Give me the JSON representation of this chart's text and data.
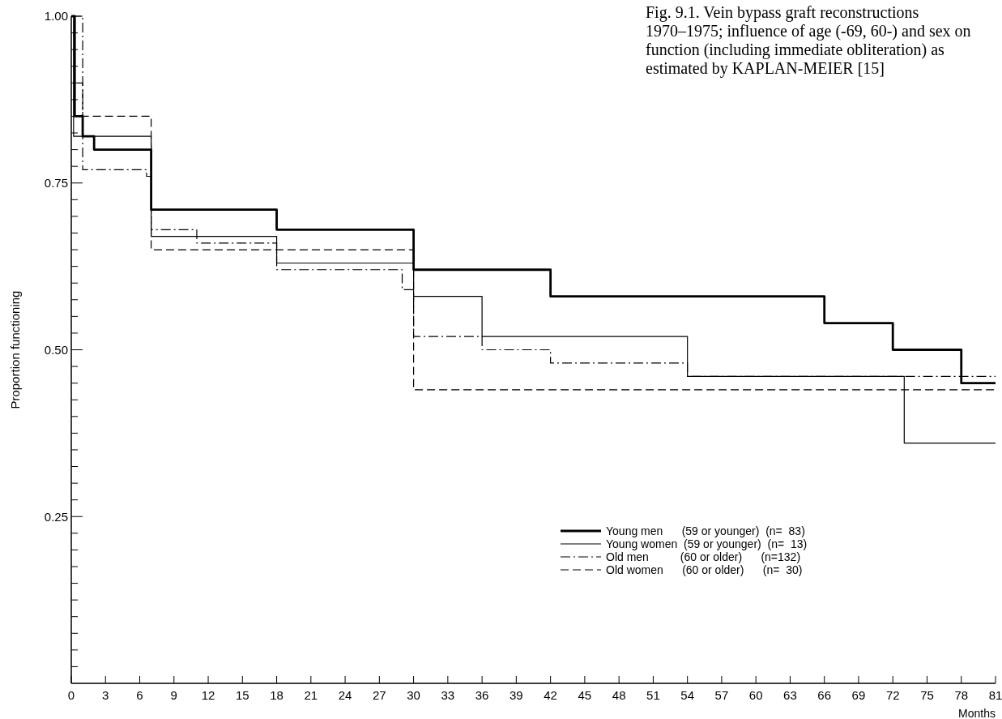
{
  "chart_data": {
    "type": "step",
    "title": "Fig. 9.1. Vein bypass graft reconstructions 1970–1975; influence of age (-69, 60-) and sex on function (including immediate obliteration) as estimated by KAPLAN-MEIER [15]",
    "xlabel": "Months",
    "ylabel": "Proportion functioning",
    "xlim": [
      0,
      81
    ],
    "xticks": [
      0,
      3,
      6,
      9,
      12,
      15,
      18,
      21,
      24,
      27,
      30,
      33,
      36,
      39,
      42,
      45,
      48,
      51,
      54,
      57,
      60,
      63,
      66,
      69,
      72,
      75,
      78,
      81
    ],
    "ylim": [
      0,
      1
    ],
    "yticks": [
      {
        "value": 0.025,
        "label": null
      },
      {
        "value": 0.05,
        "label": null
      },
      {
        "value": 0.075,
        "label": null
      },
      {
        "value": 0.1,
        "label": null
      },
      {
        "value": 0.125,
        "label": null
      },
      {
        "value": 0.15,
        "label": null
      },
      {
        "value": 0.175,
        "label": null
      },
      {
        "value": 0.2,
        "label": null
      },
      {
        "value": 0.225,
        "label": null
      },
      {
        "value": 0.25,
        "label": "0.25"
      },
      {
        "value": 0.275,
        "label": null
      },
      {
        "value": 0.3,
        "label": null
      },
      {
        "value": 0.325,
        "label": null
      },
      {
        "value": 0.35,
        "label": null
      },
      {
        "value": 0.375,
        "label": null
      },
      {
        "value": 0.4,
        "label": null
      },
      {
        "value": 0.425,
        "label": null
      },
      {
        "value": 0.45,
        "label": null
      },
      {
        "value": 0.475,
        "label": null
      },
      {
        "value": 0.5,
        "label": "0.50"
      },
      {
        "value": 0.525,
        "label": null
      },
      {
        "value": 0.55,
        "label": null
      },
      {
        "value": 0.575,
        "label": null
      },
      {
        "value": 0.6,
        "label": null
      },
      {
        "value": 0.625,
        "label": null
      },
      {
        "value": 0.65,
        "label": null
      },
      {
        "value": 0.675,
        "label": null
      },
      {
        "value": 0.7,
        "label": null
      },
      {
        "value": 0.725,
        "label": null
      },
      {
        "value": 0.75,
        "label": "0.75"
      },
      {
        "value": 0.775,
        "label": null
      },
      {
        "value": 0.8,
        "label": null
      },
      {
        "value": 0.825,
        "label": null
      },
      {
        "value": 0.85,
        "label": null
      },
      {
        "value": 0.875,
        "label": null
      },
      {
        "value": 0.9,
        "label": null
      },
      {
        "value": 0.925,
        "label": null
      },
      {
        "value": 0.95,
        "label": null
      },
      {
        "value": 0.975,
        "label": null
      },
      {
        "value": 1,
        "label": "1.00"
      }
    ],
    "grid": false,
    "legend": "right",
    "marker": "none",
    "series": [
      {
        "name": "Young men      (59 or younger)  (n=  83)",
        "color": "#000000",
        "line_style": "solid",
        "x": [
          0,
          0.3,
          1,
          2,
          7,
          18,
          30,
          42,
          66,
          72,
          78,
          81
        ],
        "values": [
          1,
          0.85,
          0.82,
          0.8,
          0.71,
          0.68,
          0.62,
          0.58,
          0.54,
          0.5,
          0.45,
          0.45
        ]
      },
      {
        "name": "Young women  (59 or younger)  (n=  13)",
        "color": "#000000",
        "line_style": "solid",
        "x": [
          0,
          0.2,
          7,
          18,
          30,
          36,
          54,
          73,
          81
        ],
        "values": [
          1,
          0.82,
          0.67,
          0.63,
          0.58,
          0.52,
          0.46,
          0.36,
          0.36
        ]
      },
      {
        "name": "Old men          (60 or older)      (n=132)",
        "color": "#000000",
        "line_style": "dashdot",
        "x": [
          0,
          1,
          6.6,
          7,
          11,
          18,
          29,
          30,
          36,
          42,
          54,
          81
        ],
        "values": [
          1,
          0.77,
          0.76,
          0.68,
          0.66,
          0.62,
          0.59,
          0.52,
          0.5,
          0.48,
          0.46,
          0.46
        ]
      },
      {
        "name": "Old women      (60 or older)      (n=  30)",
        "color": "#000000",
        "line_style": "dashed",
        "x": [
          0,
          0.3,
          1,
          7,
          30,
          81
        ],
        "values": [
          1,
          0.9,
          0.85,
          0.65,
          0.44,
          0.44
        ]
      }
    ]
  }
}
